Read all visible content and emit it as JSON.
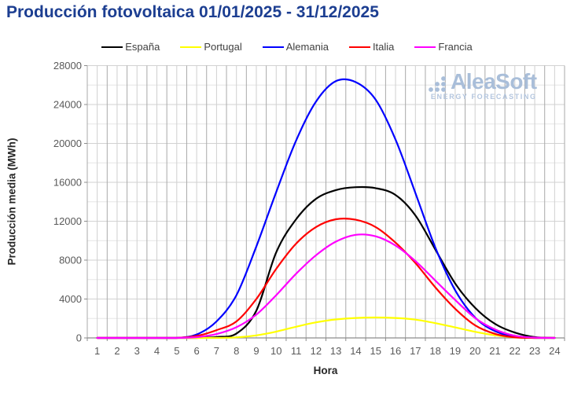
{
  "title": "Producción fotovoltaica 01/01/2025 - 31/12/2025",
  "watermark": {
    "name": "AleaSoft",
    "tagline": "ENERGY FORECASTING"
  },
  "colors": {
    "title": "#1c3e91",
    "watermark_name": "#a9bed9",
    "watermark_tagline": "#b3c5de",
    "tick_label": "#595959",
    "axis_line": "#8c8c8c",
    "grid_major_h": "#d2d2d2",
    "grid_minor_h": "#e6e6e6",
    "grid_major_v": "#a9a9a9",
    "grid_minor_v": "#d0d0d0"
  },
  "chart_data": {
    "type": "line",
    "title": "Producción fotovoltaica 01/01/2025 - 31/12/2025",
    "xlabel": "Hora",
    "ylabel": "Producción media (MWh)",
    "legend_position": "top",
    "grid": true,
    "x": [
      1,
      2,
      3,
      4,
      5,
      6,
      7,
      8,
      9,
      10,
      11,
      12,
      13,
      14,
      15,
      16,
      17,
      18,
      19,
      20,
      21,
      22,
      23,
      24
    ],
    "ylim": [
      0,
      28000
    ],
    "yticks": [
      0,
      4000,
      8000,
      12000,
      16000,
      20000,
      24000,
      28000
    ],
    "y_minor_step": 2000,
    "series": [
      {
        "name": "España",
        "color": "#000000",
        "values": [
          0,
          0,
          0,
          0,
          0,
          0,
          100,
          450,
          2800,
          8800,
          12200,
          14300,
          15200,
          15500,
          15400,
          14700,
          12600,
          9100,
          5600,
          3100,
          1450,
          550,
          80,
          0
        ]
      },
      {
        "name": "Portugal",
        "color": "#ffff00",
        "values": [
          0,
          0,
          0,
          0,
          0,
          0,
          0,
          60,
          260,
          650,
          1150,
          1600,
          1900,
          2050,
          2100,
          2050,
          1880,
          1520,
          1080,
          630,
          270,
          60,
          0,
          0
        ]
      },
      {
        "name": "Alemania",
        "color": "#0000ff",
        "values": [
          0,
          0,
          0,
          0,
          0,
          350,
          1700,
          4400,
          9400,
          15000,
          20300,
          24300,
          26400,
          26300,
          24500,
          20400,
          14900,
          9300,
          4900,
          2100,
          700,
          120,
          0,
          0
        ]
      },
      {
        "name": "Italia",
        "color": "#ff0000",
        "values": [
          0,
          0,
          0,
          0,
          0,
          200,
          800,
          1700,
          4000,
          7100,
          9700,
          11400,
          12200,
          12150,
          11400,
          9800,
          7700,
          5200,
          3000,
          1300,
          420,
          60,
          0,
          0
        ]
      },
      {
        "name": "Francia",
        "color": "#ff00ff",
        "values": [
          0,
          0,
          0,
          0,
          0,
          80,
          400,
          1100,
          2400,
          4400,
          6600,
          8500,
          9900,
          10600,
          10450,
          9500,
          7900,
          5900,
          3900,
          2050,
          880,
          230,
          30,
          0
        ]
      }
    ]
  }
}
